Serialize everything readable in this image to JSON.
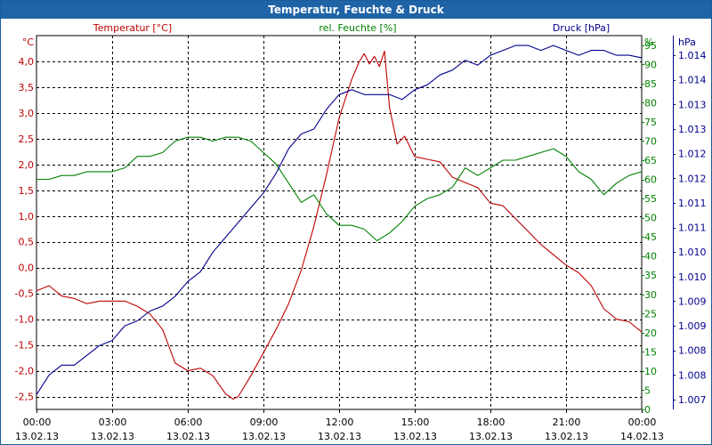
{
  "window": {
    "title": "Temperatur, Feuchte & Druck"
  },
  "colors": {
    "temperature": "#c00000",
    "humidity": "#008000",
    "pressure": "#00008b",
    "title_bar": "#1f64a6"
  },
  "chart_data": {
    "type": "line",
    "title": "Temperatur, Feuchte & Druck",
    "grid": true,
    "x_ticks": [
      {
        "time": "00:00",
        "date": "13.02.13",
        "hour": 0
      },
      {
        "time": "03:00",
        "date": "13.02.13",
        "hour": 3
      },
      {
        "time": "06:00",
        "date": "13.02.13",
        "hour": 6
      },
      {
        "time": "09:00",
        "date": "13.02.13",
        "hour": 9
      },
      {
        "time": "12:00",
        "date": "13.02.13",
        "hour": 12
      },
      {
        "time": "15:00",
        "date": "13.02.13",
        "hour": 15
      },
      {
        "time": "18:00",
        "date": "13.02.13",
        "hour": 18
      },
      {
        "time": "21:00",
        "date": "13.02.13",
        "hour": 21
      },
      {
        "time": "00:00",
        "date": "14.02.13",
        "hour": 24
      }
    ],
    "xlim": [
      0,
      24
    ],
    "axes": {
      "temperature": {
        "label": "Temperatur [°C]",
        "unit": "°C",
        "side": "left",
        "ylim": [
          -2.75,
          4.5
        ],
        "tick_values": [
          4.0,
          3.5,
          3.0,
          2.5,
          2.0,
          1.5,
          1.0,
          0.5,
          0.0,
          -0.5,
          -1.0,
          -1.5,
          -2.0,
          -2.5
        ],
        "tick_labels": [
          "4,0",
          "3,5",
          "3,0",
          "2,5",
          "2,0",
          "1,5",
          "1,0",
          "0,5",
          "0,0",
          "-0,5",
          "-1,0",
          "-1,5",
          "-2,0",
          "-2,5"
        ]
      },
      "humidity": {
        "label": "rel. Feuchte [%]",
        "unit": "%",
        "side": "right",
        "ylim": [
          0,
          97.5
        ],
        "tick_values": [
          95,
          90,
          85,
          80,
          75,
          70,
          65,
          60,
          55,
          50,
          45,
          40,
          35,
          30,
          25,
          20,
          15,
          10,
          5,
          0
        ],
        "tick_labels": [
          "95",
          "90",
          "85",
          "80",
          "75",
          "70",
          "65",
          "60",
          "55",
          "50",
          "45",
          "40",
          "35",
          "30",
          "25",
          "20",
          "15",
          "10",
          "5",
          "0"
        ]
      },
      "pressure": {
        "label": "Druck [hPa]",
        "unit": "hPa",
        "side": "right-outer",
        "ylim": [
          1006.8,
          1014.4
        ],
        "tick_positions": [
          1014,
          1013.5,
          1013,
          1012.5,
          1012,
          1011.5,
          1011,
          1010.5,
          1010,
          1009.5,
          1009,
          1008.5,
          1008,
          1007.5,
          1007
        ],
        "tick_labels": [
          "1.014",
          "1.014",
          "1.013",
          "1.013",
          "1.012",
          "1.012",
          "1.011",
          "1.011",
          "1.010",
          "1.010",
          "1.009",
          "1.009",
          "1.008",
          "1.008",
          "1.007"
        ]
      }
    },
    "series": [
      {
        "name": "Temperatur [°C]",
        "axis": "temperature",
        "color": "#c00000",
        "x": [
          0,
          0.5,
          1,
          1.5,
          2,
          2.5,
          3,
          3.5,
          4,
          4.5,
          5,
          5.5,
          6,
          6.5,
          7,
          7.5,
          7.8,
          8,
          8.5,
          9,
          9.5,
          10,
          10.5,
          11,
          11.5,
          12,
          12.5,
          12.8,
          13,
          13.2,
          13.4,
          13.6,
          13.8,
          14,
          14.3,
          14.6,
          15,
          15.5,
          16,
          16.5,
          17,
          17.5,
          18,
          18.5,
          19,
          19.5,
          20,
          20.5,
          21,
          21.5,
          22,
          22.5,
          23,
          23.5,
          24
        ],
        "y": [
          -0.45,
          -0.35,
          -0.55,
          -0.6,
          -0.7,
          -0.65,
          -0.65,
          -0.65,
          -0.75,
          -0.9,
          -1.2,
          -1.85,
          -2.0,
          -1.95,
          -2.1,
          -2.45,
          -2.55,
          -2.5,
          -2.1,
          -1.65,
          -1.2,
          -0.7,
          -0.05,
          0.8,
          1.8,
          2.9,
          3.65,
          4.0,
          4.15,
          3.95,
          4.1,
          3.9,
          4.2,
          3.1,
          2.4,
          2.55,
          2.15,
          2.1,
          2.05,
          1.75,
          1.65,
          1.55,
          1.25,
          1.2,
          0.95,
          0.7,
          0.45,
          0.25,
          0.05,
          -0.1,
          -0.35,
          -0.8,
          -1.0,
          -1.05,
          -1.25
        ]
      },
      {
        "name": "rel. Feuchte [%]",
        "axis": "humidity",
        "color": "#008000",
        "x": [
          0,
          0.5,
          1,
          1.5,
          2,
          2.5,
          3,
          3.5,
          4,
          4.5,
          5,
          5.5,
          6,
          6.5,
          7,
          7.5,
          8,
          8.5,
          9,
          9.5,
          10,
          10.5,
          11,
          11.5,
          12,
          12.5,
          13,
          13.5,
          14,
          14.5,
          15,
          15.5,
          16,
          16.5,
          17,
          17.5,
          18,
          18.5,
          19,
          19.5,
          20,
          20.5,
          21,
          21.5,
          22,
          22.5,
          23,
          23.5,
          24
        ],
        "y": [
          60,
          60,
          61,
          61,
          62,
          62,
          62,
          63,
          66,
          66,
          67,
          70,
          71,
          71,
          70,
          71,
          71,
          70,
          67,
          64,
          59,
          54,
          56,
          51,
          48,
          48,
          47,
          44,
          46,
          49,
          53,
          55,
          56,
          58,
          63,
          61,
          63,
          65,
          65,
          66,
          67,
          68,
          66,
          62,
          60,
          56,
          59,
          61,
          62
        ]
      },
      {
        "name": "Druck [hPa]",
        "axis": "pressure",
        "color": "#00008b",
        "x": [
          0,
          0.5,
          1,
          1.5,
          2,
          2.5,
          3,
          3.5,
          4,
          4.5,
          5,
          5.5,
          6,
          6.5,
          7,
          7.5,
          8,
          8.5,
          9,
          9.5,
          10,
          10.5,
          11,
          11.5,
          12,
          12.5,
          13,
          13.5,
          14,
          14.5,
          15,
          15.5,
          16,
          16.5,
          17,
          17.5,
          18,
          18.5,
          19,
          19.5,
          20,
          20.5,
          21,
          21.5,
          22,
          22.5,
          23,
          23.5,
          24
        ],
        "y": [
          1007.1,
          1007.5,
          1007.7,
          1007.7,
          1007.9,
          1008.1,
          1008.2,
          1008.5,
          1008.6,
          1008.8,
          1008.9,
          1009.1,
          1009.4,
          1009.6,
          1010.0,
          1010.3,
          1010.6,
          1010.9,
          1011.2,
          1011.6,
          1012.1,
          1012.4,
          1012.5,
          1012.9,
          1013.2,
          1013.3,
          1013.2,
          1013.2,
          1013.2,
          1013.1,
          1013.3,
          1013.4,
          1013.6,
          1013.7,
          1013.9,
          1013.8,
          1014.0,
          1014.1,
          1014.2,
          1014.2,
          1014.1,
          1014.2,
          1014.1,
          1014.0,
          1014.1,
          1014.1,
          1014.0,
          1014.0,
          1013.95
        ]
      }
    ]
  }
}
